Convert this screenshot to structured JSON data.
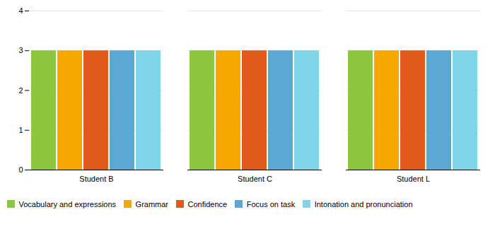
{
  "chart_data": {
    "type": "bar",
    "categories": [
      "Student B",
      "Student C",
      "Student L"
    ],
    "series": [
      {
        "name": "Vocabulary and expressions",
        "color": "#8dc63f",
        "values": [
          3,
          3,
          3
        ]
      },
      {
        "name": "Grammar",
        "color": "#f5a800",
        "values": [
          3,
          3,
          3
        ]
      },
      {
        "name": "Confidence",
        "color": "#e05a1a",
        "values": [
          3,
          3,
          3
        ]
      },
      {
        "name": "Focus on task",
        "color": "#5ba8d4",
        "values": [
          3,
          3,
          3
        ]
      },
      {
        "name": "Intonation and pronunciation",
        "color": "#7fd4e8",
        "values": [
          3,
          3,
          3
        ]
      }
    ],
    "ylim": [
      0,
      4
    ],
    "yticks": [
      0,
      1,
      2,
      3,
      4
    ],
    "grid": true,
    "legend": "bottom"
  }
}
